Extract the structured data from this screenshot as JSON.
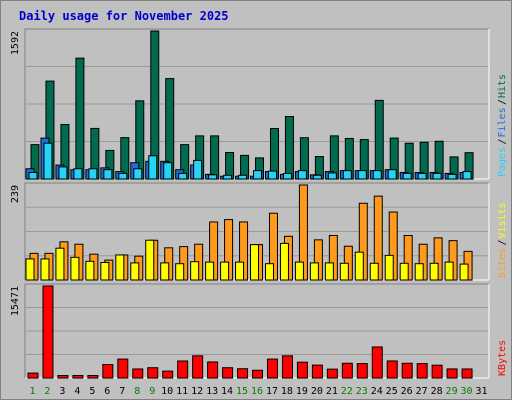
{
  "title": "Daily usage for November 2025",
  "colors": {
    "hits": "#006b4e",
    "files": "#1a6fd8",
    "pages": "#26d3f4",
    "visits": "#ff9a1a",
    "visitors": "#ffff00",
    "kbytes": "#ff0000",
    "weekend": "#008000",
    "weekday": "#000000"
  },
  "chart_data": [
    {
      "type": "bar",
      "panel": "hits-files-pages",
      "ymax_label": "1592",
      "right_labels": [
        "Pages",
        "Files",
        "Hits"
      ],
      "categories": [
        "1",
        "2",
        "3",
        "4",
        "5",
        "6",
        "7",
        "8",
        "9",
        "10",
        "11",
        "12",
        "13",
        "14",
        "15",
        "16",
        "17",
        "18",
        "19",
        "20",
        "21",
        "22",
        "23",
        "24",
        "25",
        "26",
        "27",
        "28",
        "29",
        "30",
        "31"
      ],
      "weekend_days": [
        "1",
        "2",
        "8",
        "9",
        "15",
        "16",
        "22",
        "23",
        "29",
        "30"
      ],
      "ylim": [
        0,
        1592
      ],
      "series": [
        {
          "name": "Hits",
          "values": [
            370,
            1053,
            586,
            1300,
            544,
            307,
            445,
            841,
            1592,
            1080,
            370,
            464,
            464,
            285,
            254,
            227,
            543,
            672,
            444,
            242,
            464,
            436,
            424,
            846,
            440,
            385,
            395,
            406,
            238,
            283,
            0
          ]
        },
        {
          "name": "Files",
          "values": [
            110,
            440,
            150,
            100,
            100,
            120,
            80,
            175,
            190,
            190,
            100,
            150,
            50,
            30,
            30,
            30,
            80,
            50,
            80,
            45,
            80,
            90,
            90,
            90,
            100,
            70,
            70,
            70,
            60,
            70,
            0
          ]
        },
        {
          "name": "Pages",
          "values": [
            70,
            385,
            130,
            110,
            110,
            100,
            60,
            110,
            250,
            175,
            60,
            200,
            45,
            40,
            40,
            90,
            85,
            60,
            90,
            40,
            65,
            90,
            90,
            90,
            100,
            60,
            60,
            60,
            50,
            80,
            0
          ]
        }
      ]
    },
    {
      "type": "bar",
      "panel": "visits-sites",
      "ymax_label": "239",
      "right_labels": [
        "Sites",
        "Visits"
      ],
      "categories": [
        "1",
        "2",
        "3",
        "4",
        "5",
        "6",
        "7",
        "8",
        "9",
        "10",
        "11",
        "12",
        "13",
        "14",
        "15",
        "16",
        "17",
        "18",
        "19",
        "20",
        "21",
        "22",
        "23",
        "24",
        "25",
        "26",
        "27",
        "28",
        "29",
        "30",
        "31"
      ],
      "ylim": [
        0,
        239
      ],
      "series": [
        {
          "name": "Visits",
          "values": [
            67,
            67,
            96,
            90,
            65,
            50,
            63,
            60,
            100,
            81,
            84,
            90,
            146,
            152,
            146,
            89,
            168,
            110,
            239,
            101,
            112,
            85,
            193,
            211,
            171,
            112,
            90,
            106,
            99,
            72,
            0
          ]
        },
        {
          "name": "Sites",
          "values": [
            53,
            53,
            80,
            57,
            47,
            44,
            63,
            43,
            100,
            43,
            41,
            46,
            45,
            45,
            45,
            89,
            41,
            92,
            45,
            43,
            43,
            42,
            70,
            42,
            62,
            42,
            41,
            42,
            45,
            40,
            0
          ]
        }
      ]
    },
    {
      "type": "bar",
      "panel": "kbytes",
      "ymax_label": "15471",
      "right_labels": [
        "KBytes"
      ],
      "categories": [
        "1",
        "2",
        "3",
        "4",
        "5",
        "6",
        "7",
        "8",
        "9",
        "10",
        "11",
        "12",
        "13",
        "14",
        "15",
        "16",
        "17",
        "18",
        "19",
        "20",
        "21",
        "22",
        "23",
        "24",
        "25",
        "26",
        "27",
        "28",
        "29",
        "30",
        "31"
      ],
      "ylim": [
        0,
        15471
      ],
      "series": [
        {
          "name": "KBytes",
          "values": [
            830,
            15471,
            420,
            420,
            420,
            2270,
            3180,
            1520,
            1730,
            1160,
            2860,
            3730,
            2700,
            1730,
            1560,
            1300,
            3180,
            3730,
            2660,
            2170,
            1490,
            2480,
            2420,
            5220,
            2870,
            2480,
            2420,
            2150,
            1530,
            1520,
            0
          ]
        }
      ]
    }
  ]
}
